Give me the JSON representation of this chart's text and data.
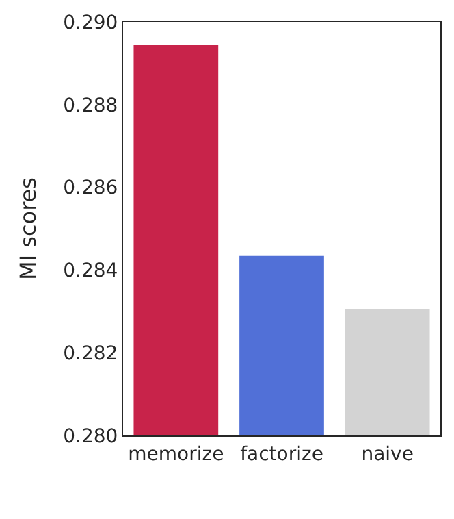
{
  "chart_data": {
    "type": "bar",
    "ylabel": "MI scores",
    "categories": [
      "memorize",
      "factorize",
      "naive"
    ],
    "values": [
      0.28944,
      0.28434,
      0.28305
    ],
    "colors": [
      "#c8234a",
      "#5170d7",
      "#d3d3d3"
    ],
    "ylim": [
      0.28,
      0.29
    ],
    "yticks": [
      {
        "value": 0.28,
        "label": "0.280"
      },
      0.282,
      0.284,
      0.286,
      0.288,
      {
        "value": 0.29,
        "label": "0.290"
      }
    ]
  }
}
